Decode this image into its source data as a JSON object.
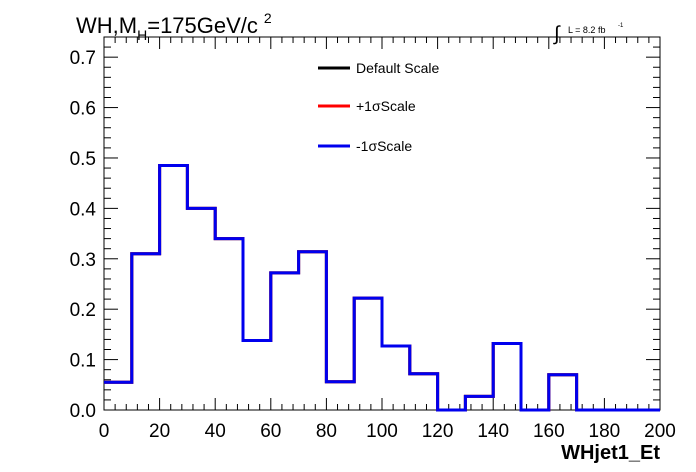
{
  "title": {
    "main": "WH,M",
    "sub": "H",
    "rest": "=175GeV/c",
    "sup": "2"
  },
  "lumi": {
    "integral": "∫",
    "text": "L = 8.2 fb",
    "sup": "-1"
  },
  "chart_data": {
    "type": "line",
    "xlabel": "WHjet1_Et",
    "ylabel": "",
    "xlim": [
      0,
      200
    ],
    "ylim": [
      0,
      0.74
    ],
    "x_ticks": [
      0,
      20,
      40,
      60,
      80,
      100,
      120,
      140,
      160,
      180,
      200
    ],
    "x_tick_labels": [
      "0",
      "20",
      "40",
      "60",
      "80",
      "100",
      "120",
      "140",
      "160",
      "180",
      "200"
    ],
    "y_ticks": [
      0,
      0.1,
      0.2,
      0.3,
      0.4,
      0.5,
      0.6,
      0.7
    ],
    "y_tick_labels": [
      "0.0",
      "0.1",
      "0.2",
      "0.3",
      "0.4",
      "0.5",
      "0.6",
      "0.7"
    ],
    "bin_edges": [
      0,
      10,
      20,
      30,
      40,
      50,
      60,
      70,
      80,
      90,
      100,
      110,
      120,
      130,
      140,
      150,
      160,
      170,
      180,
      190,
      200
    ],
    "series": [
      {
        "name": "Default Scale",
        "color": "#000000",
        "values": [
          0.055,
          0.31,
          0.485,
          0.4,
          0.34,
          0.138,
          0.272,
          0.314,
          0.056,
          0.222,
          0.127,
          0.072,
          0.0,
          0.027,
          0.132,
          0.0,
          0.07,
          0.0,
          0.0,
          0.0
        ]
      },
      {
        "name": "+1σScale",
        "color": "#ff0000",
        "values": [
          0.055,
          0.31,
          0.485,
          0.4,
          0.34,
          0.138,
          0.272,
          0.314,
          0.056,
          0.222,
          0.127,
          0.072,
          0.0,
          0.027,
          0.132,
          0.0,
          0.07,
          0.0,
          0.0,
          0.0
        ]
      },
      {
        "name": "-1σScale",
        "color": "#0000ee",
        "values": [
          0.055,
          0.31,
          0.485,
          0.4,
          0.34,
          0.138,
          0.272,
          0.314,
          0.056,
          0.222,
          0.127,
          0.072,
          0.0,
          0.027,
          0.132,
          0.0,
          0.07,
          0.0,
          0.0,
          0.0
        ]
      }
    ],
    "legend_position": "top-center",
    "grid": false
  }
}
